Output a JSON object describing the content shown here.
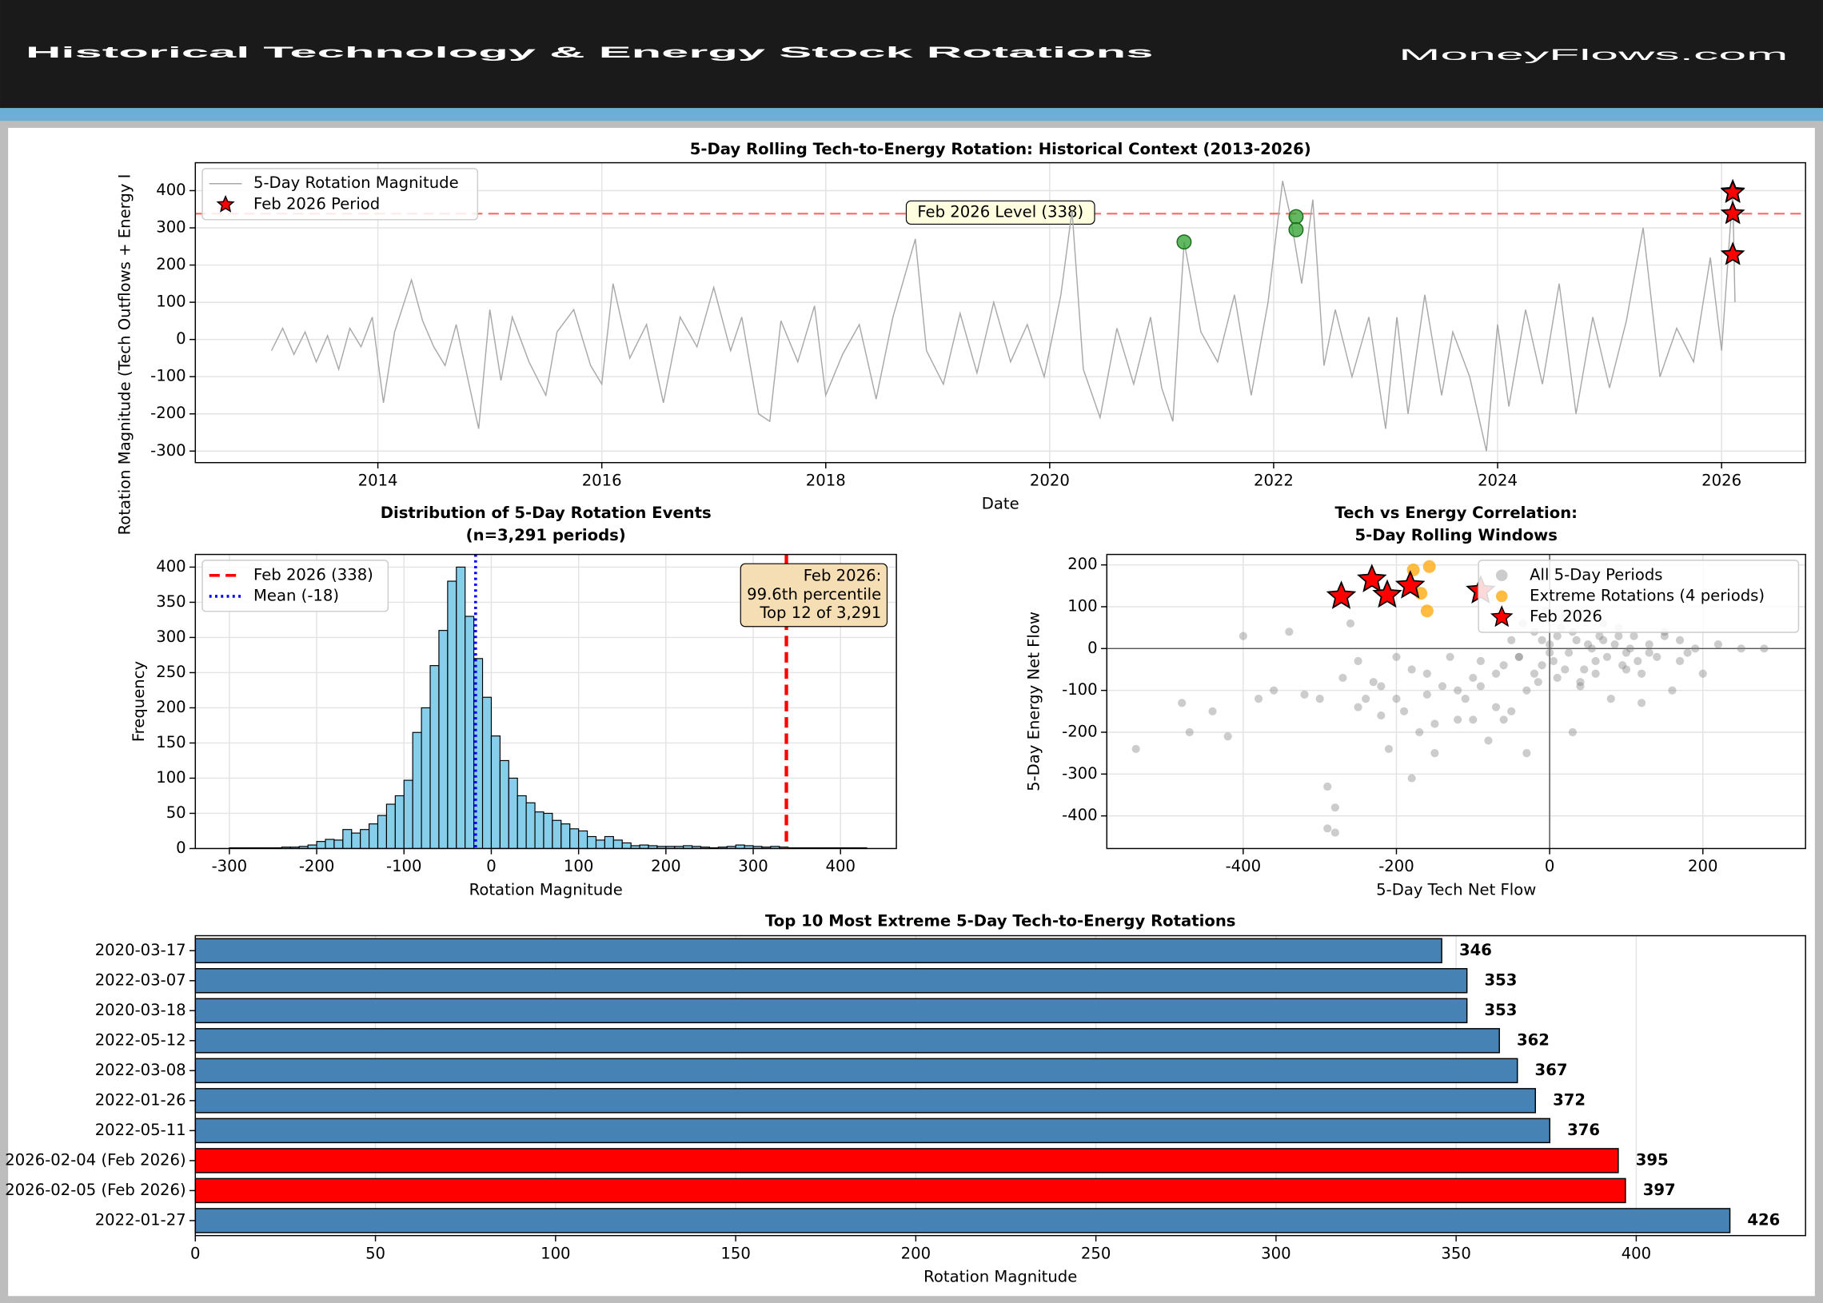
{
  "header": {
    "title": "Historical Technology & Energy Stock Rotations",
    "logo": "MoneyFlows.com"
  },
  "chart_data": [
    {
      "type": "line",
      "title": "5-Day Rolling Tech-to-Energy Rotation: Historical Context (2013-2026)",
      "xlabel": "Date",
      "ylabel": "Rotation Magnitude (Tech Outflows + Energy I",
      "xlim": [
        2012.37,
        2026.75
      ],
      "xticks": [
        2014,
        2016,
        2018,
        2020,
        2022,
        2024,
        2026
      ],
      "ylim": [
        -331,
        475
      ],
      "yticks": [
        -300,
        -200,
        -100,
        0,
        100,
        200,
        300,
        400
      ],
      "grid": "both",
      "legend": "upper left",
      "series": [
        {
          "name": "5-Day Rotation Magnitude",
          "color": "#a9a9a9",
          "marker": "none",
          "x": [
            2013.05,
            2013.15,
            2013.25,
            2013.35,
            2013.45,
            2013.55,
            2013.65,
            2013.75,
            2013.85,
            2013.95,
            2014.05,
            2014.15,
            2014.3,
            2014.4,
            2014.5,
            2014.6,
            2014.7,
            2014.8,
            2014.9,
            2015.0,
            2015.1,
            2015.2,
            2015.35,
            2015.5,
            2015.6,
            2015.75,
            2015.9,
            2016.0,
            2016.1,
            2016.25,
            2016.4,
            2016.55,
            2016.7,
            2016.85,
            2017.0,
            2017.15,
            2017.25,
            2017.4,
            2017.5,
            2017.6,
            2017.75,
            2017.9,
            2018.0,
            2018.15,
            2018.3,
            2018.45,
            2018.6,
            2018.8,
            2018.9,
            2019.05,
            2019.2,
            2019.35,
            2019.5,
            2019.65,
            2019.8,
            2019.95,
            2020.1,
            2020.2,
            2020.3,
            2020.45,
            2020.6,
            2020.75,
            2020.9,
            2021.0,
            2021.1,
            2021.2,
            2021.35,
            2021.5,
            2021.65,
            2021.8,
            2021.95,
            2022.08,
            2022.15,
            2022.25,
            2022.35,
            2022.45,
            2022.55,
            2022.7,
            2022.85,
            2023.0,
            2023.1,
            2023.2,
            2023.35,
            2023.5,
            2023.6,
            2023.75,
            2023.9,
            2024.0,
            2024.1,
            2024.25,
            2024.4,
            2024.55,
            2024.7,
            2024.85,
            2025.0,
            2025.15,
            2025.3,
            2025.45,
            2025.6,
            2025.75,
            2025.9,
            2026.0,
            2026.1,
            2026.12
          ],
          "values": [
            -30,
            30,
            -40,
            20,
            -60,
            10,
            -80,
            30,
            -20,
            60,
            -170,
            20,
            160,
            50,
            -20,
            -70,
            40,
            -100,
            -240,
            80,
            -110,
            60,
            -60,
            -150,
            20,
            80,
            -70,
            -120,
            150,
            -50,
            40,
            -170,
            60,
            -20,
            140,
            -30,
            60,
            -200,
            -220,
            50,
            -60,
            90,
            -150,
            -40,
            40,
            -160,
            60,
            270,
            -30,
            -120,
            70,
            -90,
            100,
            -60,
            40,
            -100,
            120,
            346,
            -80,
            -210,
            30,
            -120,
            60,
            -130,
            -220,
            262,
            20,
            -60,
            120,
            -150,
            100,
            426,
            330,
            150,
            376,
            -70,
            80,
            -100,
            60,
            -240,
            60,
            -200,
            120,
            -150,
            20,
            -100,
            -300,
            40,
            -180,
            80,
            -120,
            150,
            -200,
            60,
            -130,
            50,
            300,
            -100,
            30,
            -60,
            220,
            -30,
            397,
            100
          ]
        },
        {
          "name": "Feb 2026 Period",
          "color": "#ff0000",
          "marker": "star",
          "x": [
            2026.1,
            2026.1,
            2026.1,
            2026.1
          ],
          "values": [
            397,
            395,
            338,
            228
          ]
        },
        {
          "color": "#2ca02c",
          "marker": "circle",
          "x": [
            2021.2,
            2022.2,
            2022.2
          ],
          "values": [
            262,
            330,
            295
          ]
        }
      ],
      "ref_lines": [
        {
          "value": 338,
          "color": "#ff0000",
          "style": "dashed",
          "label": "Feb 2026 Level (338)"
        }
      ]
    },
    {
      "type": "histogram",
      "title": "Distribution of 5-Day Rotation Events",
      "subtitle": "(n=3,291 periods)",
      "xlabel": "Rotation Magnitude",
      "ylabel": "Frequency",
      "xlim": [
        -339,
        464
      ],
      "xticks": [
        -300,
        -200,
        -100,
        0,
        100,
        200,
        300,
        400
      ],
      "ylim": [
        0,
        418
      ],
      "yticks": [
        0,
        50,
        100,
        150,
        200,
        250,
        300,
        350,
        400
      ],
      "grid": "both",
      "legend": "upper left",
      "color": "#87ceeb",
      "bins": [
        -300,
        -290,
        -280,
        -270,
        -260,
        -250,
        -240,
        -230,
        -220,
        -210,
        -200,
        -190,
        -180,
        -170,
        -160,
        -150,
        -140,
        -130,
        -120,
        -110,
        -100,
        -90,
        -80,
        -70,
        -60,
        -50,
        -40,
        -30,
        -20,
        -10,
        0,
        10,
        20,
        30,
        40,
        50,
        60,
        70,
        80,
        90,
        100,
        110,
        120,
        130,
        140,
        150,
        160,
        170,
        180,
        190,
        200,
        210,
        220,
        230,
        240,
        250,
        260,
        270,
        280,
        290,
        300,
        310,
        320,
        330,
        340,
        350,
        360,
        370,
        380,
        390,
        400,
        410,
        420,
        430
      ],
      "values": [
        1,
        1,
        1,
        1,
        1,
        1,
        2,
        2,
        3,
        5,
        10,
        13,
        12,
        27,
        22,
        27,
        35,
        47,
        63,
        75,
        97,
        165,
        200,
        260,
        310,
        380,
        400,
        330,
        270,
        215,
        160,
        125,
        100,
        75,
        65,
        52,
        50,
        40,
        35,
        28,
        25,
        17,
        12,
        17,
        12,
        8,
        4,
        5,
        4,
        3,
        3,
        3,
        4,
        3,
        2,
        1,
        2,
        3,
        5,
        4,
        3,
        2,
        3,
        2,
        1,
        1,
        1,
        1,
        1,
        1,
        1,
        1,
        1
      ],
      "ref_lines": [
        {
          "name": "Feb 2026 (338)",
          "value": 338,
          "color": "#ff0000",
          "style": "dashed"
        },
        {
          "name": "Mean (-18)",
          "value": -18,
          "color": "#0000ff",
          "style": "dotted"
        }
      ],
      "annotation": [
        "Feb 2026:",
        "99.6th percentile",
        "Top 12 of 3,291"
      ]
    },
    {
      "type": "scatter",
      "title": "Tech vs Energy Correlation:",
      "subtitle": "5-Day Rolling Windows",
      "xlabel": "5-Day Tech Net Flow",
      "ylabel": "5-Day Energy Net Flow",
      "xlim": [
        -578,
        334
      ],
      "xticks": [
        -400,
        -200,
        0,
        200
      ],
      "ylim": [
        -478,
        225
      ],
      "yticks": [
        -400,
        -300,
        -200,
        -100,
        0,
        100,
        200
      ],
      "grid": "both",
      "legend": "upper right",
      "series": [
        {
          "name": "All 5-Day Periods",
          "color": "#808080",
          "marker": "circle",
          "x": [
            -540,
            -480,
            -470,
            -440,
            -420,
            -400,
            -380,
            -360,
            -340,
            -320,
            -300,
            -290,
            -280,
            -270,
            -260,
            -250,
            -240,
            -230,
            -220,
            -210,
            -200,
            -190,
            -180,
            -170,
            -160,
            -150,
            -140,
            -130,
            -120,
            -110,
            -100,
            -90,
            -80,
            -70,
            -60,
            -50,
            -40,
            -30,
            -20,
            -10,
            0,
            10,
            20,
            30,
            40,
            50,
            60,
            70,
            80,
            90,
            100,
            110,
            120,
            130,
            140,
            150,
            160,
            170,
            180,
            200,
            220,
            250,
            280,
            -290,
            -280,
            -250,
            -220,
            -200,
            -180,
            -150,
            -120,
            -90,
            -60,
            -30,
            30,
            60,
            90,
            120,
            -160,
            -100,
            -50,
            -40,
            -20,
            -10,
            0,
            5,
            15,
            25,
            35,
            45,
            55,
            65,
            75,
            85,
            95,
            105,
            115,
            -70,
            -35,
            -15,
            10,
            20,
            -5,
            40,
            70,
            100,
            130,
            150,
            170,
            190
          ],
          "values": [
            -240,
            -130,
            -200,
            -150,
            -210,
            30,
            -120,
            -100,
            40,
            -110,
            -120,
            -430,
            -440,
            -70,
            60,
            -30,
            -120,
            -80,
            -160,
            -240,
            -20,
            -150,
            -50,
            -200,
            -60,
            -250,
            -90,
            -20,
            -170,
            -120,
            -70,
            -30,
            -220,
            -140,
            -40,
            -150,
            -20,
            -100,
            -60,
            20,
            -10,
            30,
            -50,
            40,
            -80,
            10,
            -30,
            20,
            -120,
            50,
            -10,
            30,
            -60,
            10,
            -20,
            40,
            -100,
            20,
            -10,
            -60,
            10,
            0,
            0,
            -330,
            -380,
            -140,
            -90,
            -120,
            -310,
            -180,
            -100,
            -90,
            -170,
            -250,
            -200,
            -60,
            30,
            -130,
            -110,
            -170,
            20,
            -20,
            40,
            -40,
            10,
            -30,
            50,
            -10,
            20,
            -50,
            0,
            30,
            -20,
            10,
            -40,
            0,
            -30,
            -60,
            60,
            -80,
            -70,
            80,
            90,
            -90,
            60,
            -50,
            -10,
            30,
            -30,
            0
          ]
        },
        {
          "name": "Extreme Rotations (4 periods)",
          "color": "#ffa500",
          "marker": "circle",
          "x": [
            -178,
            -157,
            -168,
            -160
          ],
          "values": [
            188,
            196,
            132,
            90
          ]
        },
        {
          "name": "Feb 2026",
          "color": "#ff0000",
          "marker": "star",
          "x": [
            -272,
            -232,
            -212,
            -182,
            -90
          ],
          "values": [
            125,
            165,
            128,
            150,
            138
          ]
        }
      ]
    },
    {
      "type": "bar",
      "orientation": "horizontal",
      "title": "Top 10 Most Extreme 5-Day Tech-to-Energy Rotations",
      "xlabel": "Rotation Magnitude",
      "xlim": [
        0,
        447
      ],
      "xticks": [
        0,
        50,
        100,
        150,
        200,
        250,
        300,
        350,
        400
      ],
      "grid": "x",
      "categories": [
        "2020-03-17",
        "2022-03-07",
        "2020-03-18",
        "2022-05-12",
        "2022-03-08",
        "2022-01-26",
        "2022-05-11",
        "2026-02-04 (Feb 2026)",
        "2026-02-05 (Feb 2026)",
        "2022-01-27"
      ],
      "values": [
        346,
        353,
        353,
        362,
        367,
        372,
        376,
        395,
        397,
        426
      ],
      "colors": [
        "#4682b4",
        "#4682b4",
        "#4682b4",
        "#4682b4",
        "#4682b4",
        "#4682b4",
        "#4682b4",
        "#ff0000",
        "#ff0000",
        "#4682b4"
      ]
    }
  ]
}
